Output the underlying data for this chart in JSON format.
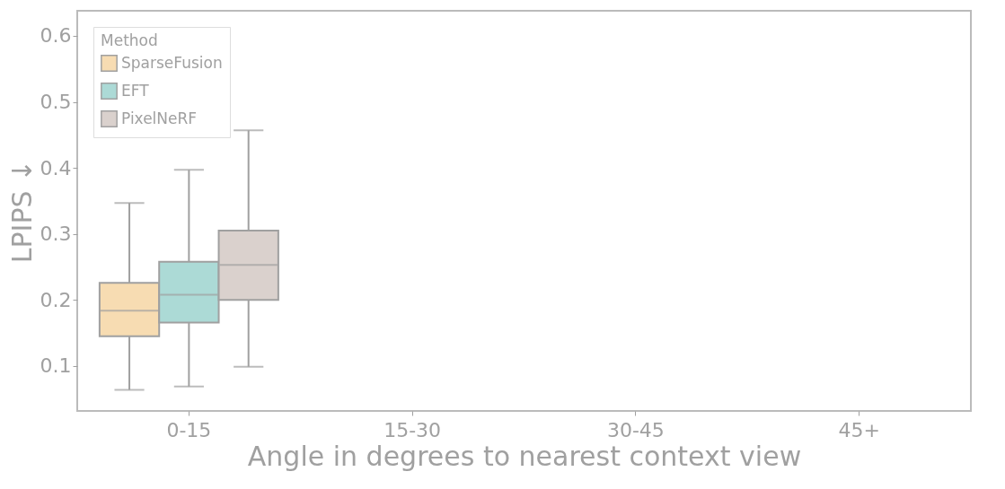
{
  "chart_data": {
    "type": "box",
    "xlabel": "Angle in degrees to nearest context view",
    "ylabel": "LPIPS ↓",
    "legend_title": "Method",
    "legend": "top left",
    "categories": [
      "0-15",
      "15-30",
      "30-45",
      "45+"
    ],
    "ylim": [
      0.032,
      0.638
    ],
    "yticks": [
      0.1,
      0.2,
      0.3,
      0.4,
      0.5,
      0.6
    ],
    "series": [
      {
        "name": "SparseFusion",
        "color": "#f7dcb2",
        "boxes": [
          {
            "low": 0.064,
            "q1": 0.145,
            "median": 0.184,
            "q3": 0.226,
            "high": 0.347
          },
          null,
          null,
          null
        ]
      },
      {
        "name": "EFT",
        "color": "#acdad6",
        "boxes": [
          {
            "low": 0.069,
            "q1": 0.166,
            "median": 0.208,
            "q3": 0.258,
            "high": 0.397
          },
          null,
          null,
          null
        ]
      },
      {
        "name": "PixelNeRF",
        "color": "#dad1cd",
        "boxes": [
          {
            "low": 0.099,
            "q1": 0.2,
            "median": 0.253,
            "q3": 0.305,
            "high": 0.457
          },
          null,
          null,
          null
        ]
      }
    ]
  }
}
